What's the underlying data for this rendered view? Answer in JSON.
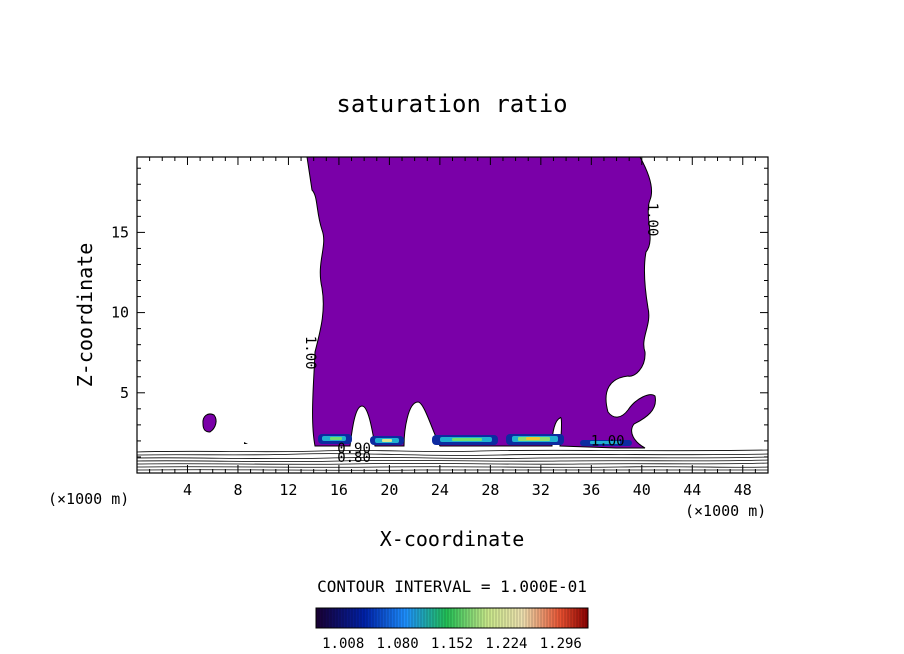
{
  "chart_data": {
    "type": "contour",
    "title": "saturation ratio",
    "xlabel": "X-coordinate",
    "ylabel": "Z-coordinate",
    "x_unit": "(×1000 m)",
    "y_unit": "(×1000 m)",
    "xlim": [
      0,
      50
    ],
    "ylim": [
      0,
      19.7
    ],
    "x_ticks": [
      4,
      8,
      12,
      16,
      20,
      24,
      28,
      32,
      36,
      40,
      44,
      48
    ],
    "y_ticks": [
      5,
      10,
      15
    ],
    "contour_interval_label": "CONTOUR INTERVAL = 1.000E-01",
    "contour_labels": [
      {
        "text": "1.00",
        "x": 13.4,
        "y": 7.5
      },
      {
        "text": "1.00",
        "x": 40.5,
        "y": 15.8
      },
      {
        "text": "1.00",
        "x": 37.3,
        "y": 1.7
      },
      {
        "text": "0.90",
        "x": 17.2,
        "y": 1.25
      },
      {
        "text": "0.80",
        "x": 17.2,
        "y": 0.7
      }
    ],
    "colorbar_ticks": [
      "1.008",
      "1.080",
      "1.152",
      "1.224",
      "1.296"
    ],
    "colorbar_range": [
      0.972,
      1.332
    ],
    "colors": {
      "supersaturated_fill": "#7a00a8",
      "contour_line": "#000000"
    }
  }
}
